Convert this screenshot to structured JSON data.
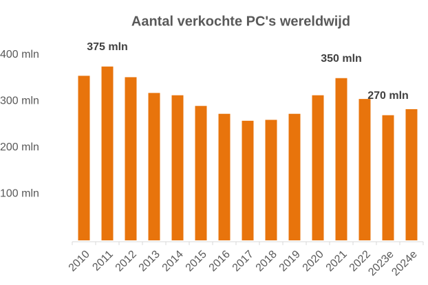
{
  "chart_data": {
    "type": "bar",
    "title": "Aantal verkochte PC's wereldwijd",
    "categories": [
      "2010",
      "2011",
      "2012",
      "2013",
      "2014",
      "2015",
      "2016",
      "2017",
      "2018",
      "2019",
      "2020",
      "2021",
      "2022",
      "2023e",
      "2024e"
    ],
    "values": [
      355,
      375,
      352,
      318,
      313,
      290,
      273,
      258,
      260,
      273,
      313,
      350,
      305,
      270,
      283
    ],
    "value_labels": [
      null,
      "375 mln",
      null,
      null,
      null,
      null,
      null,
      null,
      null,
      null,
      null,
      "350 mln",
      null,
      "270 mln",
      null
    ],
    "color": "#e8740c",
    "ylim": [
      0,
      400
    ],
    "yticks": [
      {
        "value": 100,
        "label": "100 mln"
      },
      {
        "value": 200,
        "label": "200 mln"
      },
      {
        "value": 300,
        "label": "300 mln"
      },
      {
        "value": 400,
        "label": "400 mln"
      }
    ],
    "grid": false
  }
}
